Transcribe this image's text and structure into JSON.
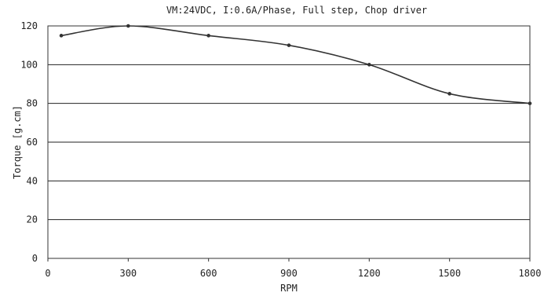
{
  "chart_data": {
    "type": "line",
    "title": "VM:24VDC, I:0.6A/Phase, Full step, Chop driver",
    "xlabel": "RPM",
    "ylabel": "Torque [g.cm]",
    "xlim": [
      0,
      1800
    ],
    "ylim": [
      0,
      120
    ],
    "x_ticks": [
      0,
      300,
      600,
      900,
      1200,
      1500,
      1800
    ],
    "y_ticks": [
      0,
      20,
      40,
      60,
      80,
      100,
      120
    ],
    "grid": "horizontal",
    "legend": "none",
    "series": [
      {
        "x": [
          50,
          300,
          600,
          900,
          1200,
          1500,
          1800
        ],
        "values": [
          115,
          120,
          115,
          110,
          100,
          85,
          80
        ]
      }
    ],
    "colors": {
      "line": "#333333",
      "grid": "#222222",
      "frame": "#333333"
    }
  }
}
